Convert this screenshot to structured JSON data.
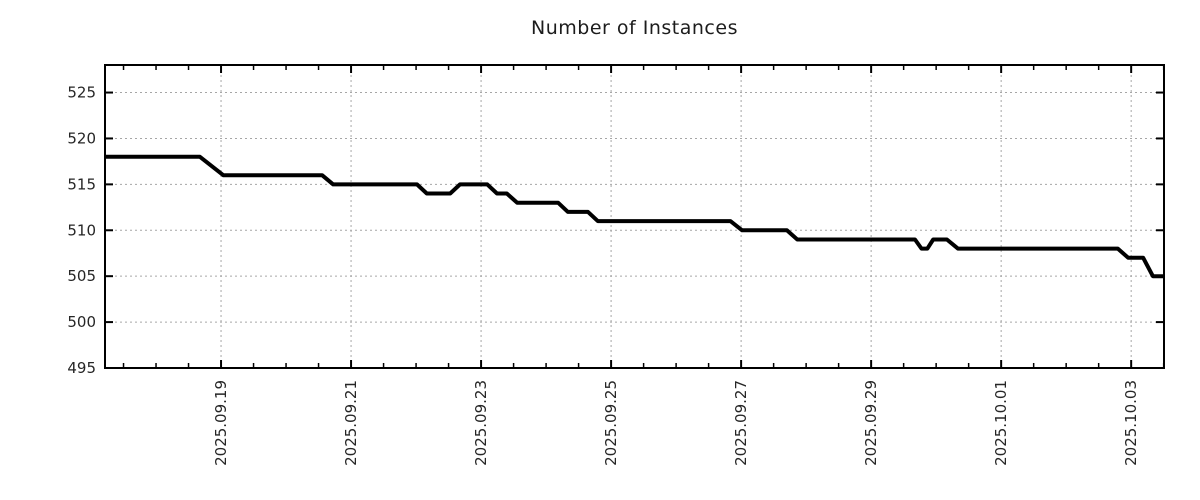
{
  "chart_data": {
    "type": "line",
    "title": "Number of Instances",
    "xlabel": "",
    "ylabel": "",
    "legend": "none",
    "grid": "dotted major gridlines both axes",
    "y_ticks": [
      495,
      500,
      505,
      510,
      515,
      520,
      525
    ],
    "ylim": [
      495,
      528
    ],
    "x_range_days": [
      0,
      16.29
    ],
    "x_major_ticks": [
      {
        "day": 1.785,
        "label": "2025.09.19"
      },
      {
        "day": 3.785,
        "label": "2025.09.21"
      },
      {
        "day": 5.785,
        "label": "2025.09.23"
      },
      {
        "day": 7.785,
        "label": "2025.09.25"
      },
      {
        "day": 9.785,
        "label": "2025.09.27"
      },
      {
        "day": 11.785,
        "label": "2025.09.29"
      },
      {
        "day": 13.785,
        "label": "2025.10.01"
      },
      {
        "day": 15.785,
        "label": "2025.10.03"
      }
    ],
    "x_minor_tick_start": 0.285,
    "x_minor_tick_step": 0.5,
    "series": [
      {
        "name": "instances",
        "points": [
          [
            0.0,
            518
          ],
          [
            1.46,
            518
          ],
          [
            1.82,
            516
          ],
          [
            3.34,
            516
          ],
          [
            3.51,
            515
          ],
          [
            4.8,
            515
          ],
          [
            4.95,
            514
          ],
          [
            5.31,
            514
          ],
          [
            5.46,
            515
          ],
          [
            5.88,
            515
          ],
          [
            6.03,
            514
          ],
          [
            6.18,
            514
          ],
          [
            6.34,
            513
          ],
          [
            6.97,
            513
          ],
          [
            7.12,
            512
          ],
          [
            7.43,
            512
          ],
          [
            7.58,
            511
          ],
          [
            9.62,
            511
          ],
          [
            9.8,
            510
          ],
          [
            10.49,
            510
          ],
          [
            10.65,
            509
          ],
          [
            12.46,
            509
          ],
          [
            12.56,
            508
          ],
          [
            12.65,
            508
          ],
          [
            12.74,
            509
          ],
          [
            12.95,
            509
          ],
          [
            13.12,
            508
          ],
          [
            15.58,
            508
          ],
          [
            15.74,
            507
          ],
          [
            15.97,
            507
          ],
          [
            16.12,
            505
          ],
          [
            16.29,
            505
          ]
        ]
      }
    ],
    "colors": {
      "line": "#000000",
      "border": "#000000",
      "grid": "#a6a6a6",
      "tick_text": "#262626",
      "title_text": "#1c1c1c",
      "background": "#ffffff"
    }
  }
}
